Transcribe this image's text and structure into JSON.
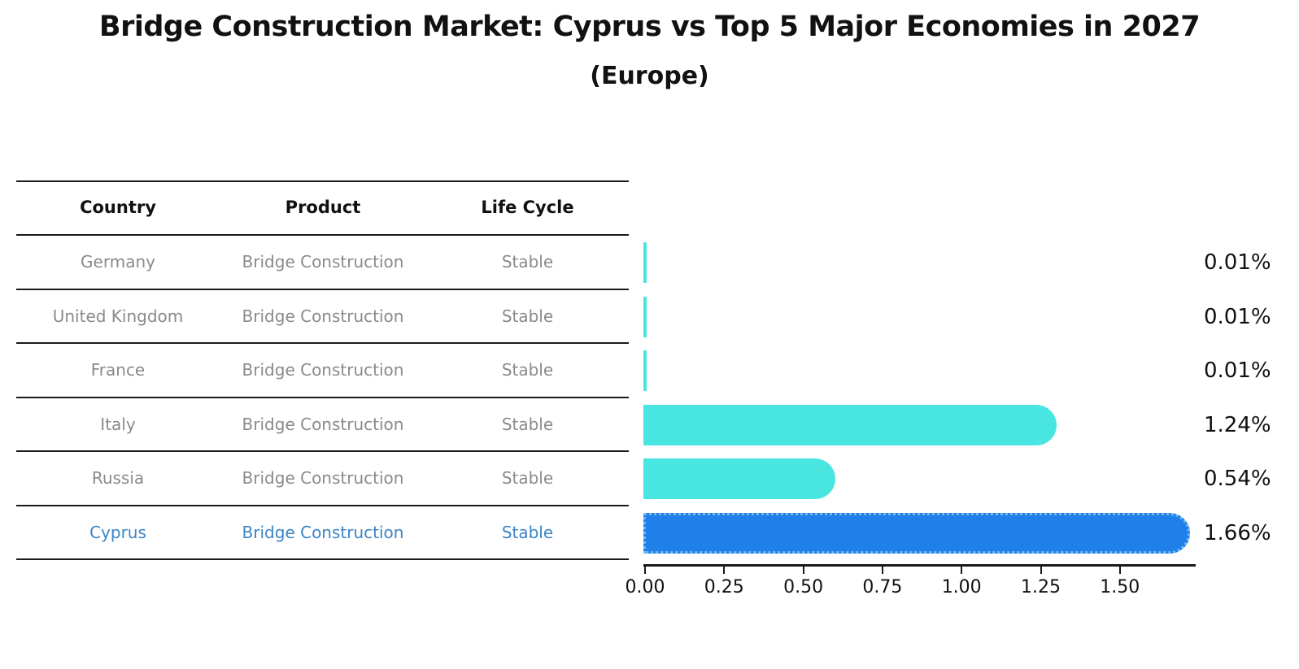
{
  "title": "Bridge Construction Market: Cyprus vs Top 5 Major Economies in 2027",
  "subtitle": "(Europe)",
  "table": {
    "headers": [
      "Country",
      "Product",
      "Life Cycle"
    ],
    "rows": [
      {
        "country": "Germany",
        "product": "Bridge Construction",
        "life_cycle": "Stable",
        "value": 0.01,
        "value_label": "0.01%",
        "highlight": false
      },
      {
        "country": "United Kingdom",
        "product": "Bridge Construction",
        "life_cycle": "Stable",
        "value": 0.01,
        "value_label": "0.01%",
        "highlight": false
      },
      {
        "country": "France",
        "product": "Bridge Construction",
        "life_cycle": "Stable",
        "value": 0.01,
        "value_label": "0.01%",
        "highlight": false
      },
      {
        "country": "Italy",
        "product": "Bridge Construction",
        "life_cycle": "Stable",
        "value": 1.24,
        "value_label": "1.24%",
        "highlight": false
      },
      {
        "country": "Russia",
        "product": "Bridge Construction",
        "life_cycle": "Stable",
        "value": 0.54,
        "value_label": "0.54%",
        "highlight": false
      },
      {
        "country": "Cyprus",
        "product": "Bridge Construction",
        "life_cycle": "Stable",
        "value": 1.66,
        "value_label": "1.66%",
        "highlight": true
      }
    ]
  },
  "chart": {
    "x_ticks": [
      "0.00",
      "0.25",
      "0.50",
      "0.75",
      "1.00",
      "1.25",
      "1.50"
    ]
  },
  "colors": {
    "bar": "#49E5E0",
    "highlight_bar": "#1E80E8",
    "highlight_bar_edge": "#72B7F2",
    "highlight_text": "#3D85C6",
    "row_text": "#8A8A8A",
    "line": "#1A1A1A"
  },
  "chart_data": {
    "type": "bar",
    "orientation": "horizontal",
    "title": "Bridge Construction Market: Cyprus vs Top 5 Major Economies in 2027",
    "subtitle": "(Europe)",
    "categories": [
      "Germany",
      "United Kingdom",
      "France",
      "Italy",
      "Russia",
      "Cyprus"
    ],
    "values": [
      0.01,
      0.01,
      0.01,
      1.24,
      0.54,
      1.66
    ],
    "value_labels": [
      "0.01%",
      "0.01%",
      "0.01%",
      "1.24%",
      "0.54%",
      "1.66%"
    ],
    "xlabel": "",
    "ylabel": "",
    "xlim": [
      0,
      1.75
    ],
    "x_ticks": [
      0,
      0.25,
      0.5,
      0.75,
      1.0,
      1.25,
      1.5
    ],
    "grid": false,
    "legend": null,
    "highlight_category": "Cyprus",
    "series_unit": "percent"
  }
}
